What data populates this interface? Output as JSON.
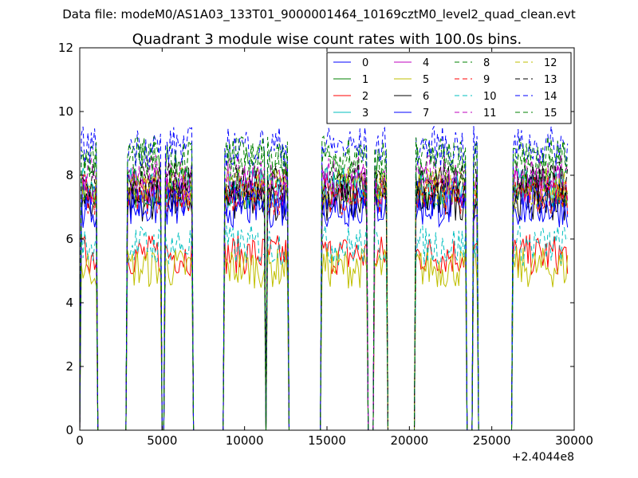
{
  "figure": {
    "suptitle": "Data file: modeM0/AS1A03_133T01_9000001464_10169cztM0_level2_quad_clean.evt"
  },
  "chart_data": {
    "type": "line",
    "title": "Quadrant 3 module wise count rates with 100.0s bins.",
    "xlabel": "",
    "ylabel": "",
    "x_offset_label": "+2.4044e8",
    "xlim": [
      0,
      30000
    ],
    "ylim": [
      0,
      12
    ],
    "xticks": [
      0,
      5000,
      10000,
      15000,
      20000,
      25000,
      30000
    ],
    "yticks": [
      0,
      2,
      4,
      6,
      8,
      10,
      12
    ],
    "bin_size_s": 100,
    "legend_position": "top-right",
    "on_intervals": [
      [
        100,
        1000
      ],
      [
        2900,
        4900
      ],
      [
        5200,
        6800
      ],
      [
        8800,
        11200
      ],
      [
        11400,
        12600
      ],
      [
        14700,
        17400
      ],
      [
        17900,
        18600
      ],
      [
        20400,
        23400
      ],
      [
        23900,
        24100
      ],
      [
        26300,
        29700
      ]
    ],
    "series": [
      {
        "name": "0",
        "color": "#0000ff",
        "style": "solid",
        "level": 7.3
      },
      {
        "name": "1",
        "color": "#008000",
        "style": "solid",
        "level": 7.6
      },
      {
        "name": "2",
        "color": "#ff0000",
        "style": "solid",
        "level": 5.5
      },
      {
        "name": "3",
        "color": "#00bfbf",
        "style": "solid",
        "level": 7.6
      },
      {
        "name": "4",
        "color": "#bf00bf",
        "style": "solid",
        "level": 7.7
      },
      {
        "name": "5",
        "color": "#bfbf00",
        "style": "solid",
        "level": 5.1
      },
      {
        "name": "6",
        "color": "#000000",
        "style": "solid",
        "level": 7.2
      },
      {
        "name": "7",
        "color": "#0000ff",
        "style": "solid",
        "level": 7.0
      },
      {
        "name": "8",
        "color": "#008000",
        "style": "dashed",
        "level": 8.4
      },
      {
        "name": "9",
        "color": "#ff0000",
        "style": "dashed",
        "level": 7.4
      },
      {
        "name": "10",
        "color": "#00bfbf",
        "style": "dashed",
        "level": 5.8
      },
      {
        "name": "11",
        "color": "#bf00bf",
        "style": "dashed",
        "level": 8.0
      },
      {
        "name": "12",
        "color": "#bfbf00",
        "style": "dashed",
        "level": 7.6
      },
      {
        "name": "13",
        "color": "#000000",
        "style": "dashed",
        "level": 7.8
      },
      {
        "name": "14",
        "color": "#0000ff",
        "style": "dashed",
        "level": 8.9
      },
      {
        "name": "15",
        "color": "#008000",
        "style": "dashed",
        "level": 8.6
      }
    ]
  }
}
